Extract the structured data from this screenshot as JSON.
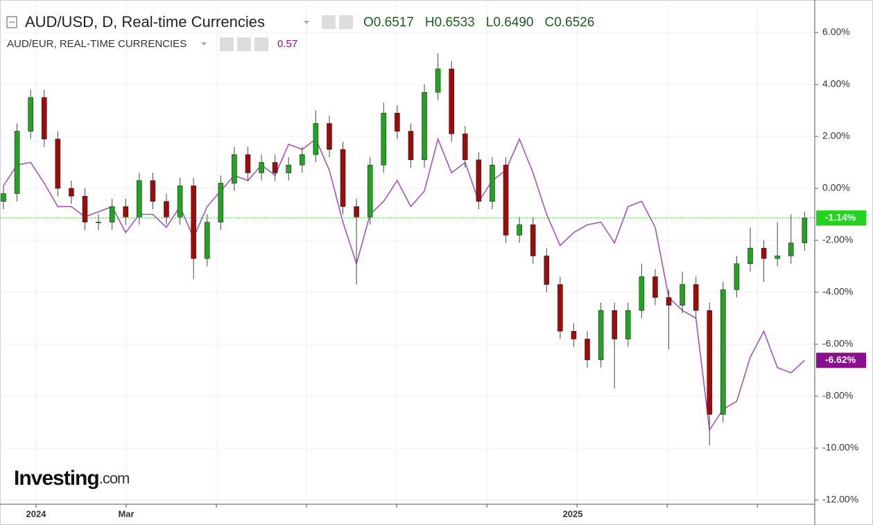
{
  "chart_data": {
    "type": "candlestick",
    "title": "AUD/USD, D, Real-time Currencies",
    "ohlc": [
      {
        "label": "O",
        "value": "0.6517"
      },
      {
        "label": "H",
        "value": "0.6533"
      },
      {
        "label": "L",
        "value": "0.6490"
      },
      {
        "label": "C",
        "value": "0.6526"
      }
    ],
    "compare": {
      "name": "AUD/EUR, REAL-TIME CURRENCIES",
      "value": "0.57"
    },
    "logo": {
      "brand": "Investing",
      "suffix": ".com"
    },
    "xlim": [
      -0.255,
      59.75
    ],
    "xticks": [
      {
        "value": 2.4,
        "label": "2024"
      },
      {
        "value": 9.04,
        "label": "Mar"
      },
      {
        "value": 41.93,
        "label": "2025"
      }
    ],
    "ylim": [
      -12.16,
      7.12
    ],
    "yticks": [
      {
        "value": 6,
        "label": "6.00%"
      },
      {
        "value": 4,
        "label": "4.00%"
      },
      {
        "value": 2,
        "label": "2.00%"
      },
      {
        "value": 0,
        "label": "0.00%"
      },
      {
        "value": -2,
        "label": "-2.00%"
      },
      {
        "value": -4,
        "label": "-4.00%"
      },
      {
        "value": -6,
        "label": "-6.00%"
      },
      {
        "value": -8,
        "label": "-8.00%"
      },
      {
        "value": -10,
        "label": "-10.00%"
      },
      {
        "value": -12,
        "label": "-12.00%"
      }
    ],
    "grid": true,
    "candles": {
      "name": "AUD/USD",
      "up_color": "#22a322",
      "down_color": "#9e0b0b",
      "last_color": "#22d41f",
      "last_label": "-1.14%",
      "open": [
        -0.5,
        -0.2,
        2.2,
        3.5,
        1.9,
        0,
        -0.3,
        -1.3,
        -1.3,
        -0.7,
        -1.1,
        0.3,
        -0.5,
        -1.1,
        0.1,
        -2.7,
        -1.3,
        0.2,
        1.3,
        0.6,
        1.0,
        0.6,
        0.9,
        1.3,
        2.5,
        1.5,
        -0.7,
        -1.1,
        0.9,
        2.9,
        2.2,
        1.1,
        3.7,
        4.6,
        2.1,
        1.1,
        -0.5,
        0.9,
        -1.8,
        -1.4,
        -2.6,
        -3.7,
        -5.5,
        -5.8,
        -6.6,
        -4.7,
        -5.8,
        -4.7,
        -3.4,
        -4.2,
        -4.5,
        -3.7,
        -4.7,
        -8.7,
        -3.9,
        -2.9,
        -2.3,
        -2.7,
        -2.6,
        -2.1
      ],
      "high": [
        0.1,
        2.5,
        3.8,
        3.8,
        2.2,
        0.3,
        0,
        -1.0,
        -0.4,
        -0.4,
        0.6,
        0.6,
        -0.2,
        0.4,
        0.4,
        -1.0,
        0.5,
        1.6,
        1.6,
        1.3,
        1.3,
        1.2,
        1.6,
        3.0,
        2.8,
        1.8,
        -0.4,
        1.2,
        3.3,
        3.2,
        2.5,
        4.0,
        5.2,
        4.9,
        2.4,
        1.4,
        1.2,
        1.2,
        -1.1,
        -1.1,
        -2.3,
        -3.4,
        -5.2,
        -5.5,
        -4.4,
        -4.4,
        -4.4,
        -2.9,
        -3.1,
        -3.9,
        -3.2,
        -3.4,
        -4.4,
        -3.6,
        -2.6,
        -1.5,
        -2.0,
        -1.3,
        -1.0,
        -0.9
      ],
      "low": [
        -0.8,
        -0.5,
        1.9,
        1.6,
        -0.3,
        -0.6,
        -1.6,
        -1.6,
        -1.6,
        -1.4,
        -1.4,
        -0.8,
        -1.4,
        -1.4,
        -3.5,
        -3.0,
        -1.6,
        -0.1,
        0.3,
        0.3,
        0.3,
        0.3,
        0.6,
        1.0,
        1.2,
        -1.0,
        -3.7,
        -1.4,
        0.6,
        1.9,
        0.8,
        0.8,
        3.4,
        1.8,
        0.8,
        -0.8,
        -0.8,
        -2.1,
        -2.1,
        -2.9,
        -4.0,
        -5.8,
        -6.1,
        -6.9,
        -6.9,
        -7.7,
        -6.1,
        -5.0,
        -4.5,
        -6.2,
        -4.8,
        -5.0,
        -9.9,
        -9.0,
        -4.2,
        -3.2,
        -3.6,
        -3.0,
        -2.9,
        -2.4
      ],
      "close": [
        -0.2,
        2.2,
        3.5,
        1.9,
        0,
        -0.3,
        -1.3,
        -1.3,
        -0.7,
        -1.1,
        0.3,
        -0.5,
        -1.1,
        0.1,
        -2.7,
        -1.3,
        0.2,
        1.3,
        0.6,
        1.0,
        0.6,
        0.9,
        1.3,
        2.5,
        1.5,
        -0.7,
        -1.1,
        0.9,
        2.9,
        2.2,
        1.1,
        3.7,
        4.6,
        2.1,
        1.1,
        -0.5,
        0.9,
        -1.8,
        -1.4,
        -2.6,
        -3.7,
        -5.5,
        -5.8,
        -6.6,
        -4.7,
        -5.8,
        -4.7,
        -3.4,
        -4.2,
        -4.5,
        -3.7,
        -4.7,
        -8.7,
        -3.9,
        -2.9,
        -2.3,
        -2.7,
        -2.6,
        -2.1,
        -1.14
      ]
    },
    "series": [
      {
        "name": "AUD/EUR",
        "color": "#a552b8",
        "tag_color": "#8a0f8e",
        "last_label": "-6.62%",
        "values": [
          0.1,
          0.9,
          1.0,
          0.2,
          -0.7,
          -0.7,
          -1.1,
          -0.9,
          -0.7,
          -1.7,
          -1.0,
          -1.0,
          -1.5,
          -0.7,
          -1.9,
          -0.7,
          -0.1,
          0.5,
          0.3,
          0.9,
          0.5,
          1.7,
          1.5,
          1.9,
          0.7,
          -1.3,
          -2.9,
          -1.0,
          -0.5,
          0.3,
          -0.7,
          -0.1,
          1.9,
          0.6,
          1.0,
          -0.5,
          0.3,
          0.7,
          1.9,
          0.6,
          -1.0,
          -2.2,
          -1.7,
          -1.4,
          -1.3,
          -2.1,
          -0.7,
          -0.5,
          -1.5,
          -4.2,
          -4.7,
          -5.0,
          -9.3,
          -8.5,
          -8.2,
          -6.5,
          -5.5,
          -6.9,
          -7.1,
          -6.62
        ]
      }
    ]
  }
}
